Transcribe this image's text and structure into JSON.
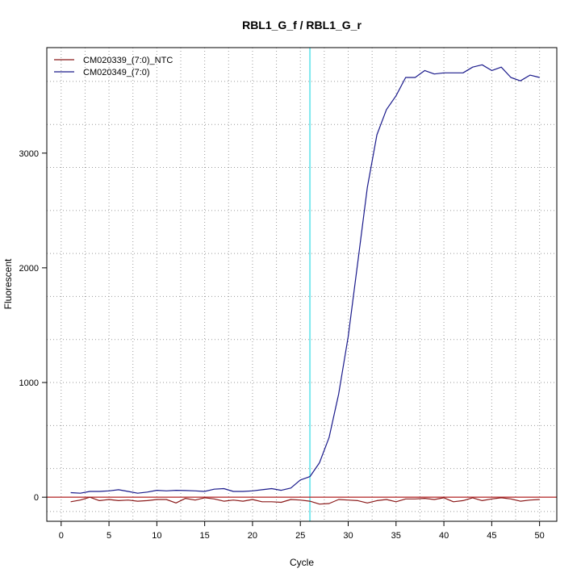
{
  "chart_data": {
    "type": "line",
    "title": "RBL1_G_f / RBL1_G_r",
    "xlabel": "Cycle",
    "ylabel": "Fluorescent",
    "xlim": [
      -1.5,
      51.8
    ],
    "ylim": [
      -210,
      3920
    ],
    "x_ticks": [
      0,
      5,
      10,
      15,
      20,
      25,
      30,
      35,
      40,
      45,
      50
    ],
    "x_tick_labels": [
      "0",
      "5",
      "10",
      "15",
      "20",
      "25",
      "30",
      "35",
      "40",
      "45",
      "50"
    ],
    "y_ticks": [
      0,
      1000,
      2000,
      3000
    ],
    "y_tick_labels": [
      "0",
      "1000",
      "2000",
      "3000"
    ],
    "grid": true,
    "legend_position": "top-left",
    "threshold_x": 26,
    "threshold_color": "#7fe8ee",
    "baseline_y": 0,
    "baseline_color": "#b02020",
    "series": [
      {
        "name": "CM020339_(7:0)_NTC",
        "color": "#8b1a1a",
        "x": [
          1,
          2,
          3,
          4,
          5,
          6,
          7,
          8,
          9,
          10,
          11,
          12,
          13,
          14,
          15,
          16,
          17,
          18,
          19,
          20,
          21,
          22,
          23,
          24,
          25,
          26,
          27,
          28,
          29,
          30,
          31,
          32,
          33,
          34,
          35,
          36,
          37,
          38,
          39,
          40,
          41,
          42,
          43,
          44,
          45,
          46,
          47,
          48,
          49,
          50
        ],
        "values": [
          -40,
          -25,
          0,
          -30,
          -20,
          -30,
          -25,
          -35,
          -30,
          -20,
          -20,
          -50,
          -10,
          -25,
          -5,
          -15,
          -35,
          -25,
          -35,
          -20,
          -40,
          -40,
          -45,
          -20,
          -25,
          -35,
          -60,
          -55,
          -20,
          -25,
          -30,
          -50,
          -30,
          -20,
          -40,
          -15,
          -15,
          -10,
          -20,
          -5,
          -40,
          -30,
          -5,
          -30,
          -15,
          -5,
          -15,
          -35,
          -25,
          -20
        ]
      },
      {
        "name": "CM020349_(7:0)",
        "color": "#1a1a8b",
        "x": [
          1,
          2,
          3,
          4,
          5,
          6,
          7,
          8,
          9,
          10,
          11,
          12,
          13,
          14,
          15,
          16,
          17,
          18,
          19,
          20,
          21,
          22,
          23,
          24,
          25,
          26,
          27,
          28,
          29,
          30,
          31,
          32,
          33,
          34,
          35,
          36,
          37,
          38,
          39,
          40,
          41,
          42,
          43,
          44,
          45,
          46,
          47,
          48,
          49,
          50
        ],
        "values": [
          40,
          35,
          50,
          50,
          55,
          65,
          50,
          35,
          45,
          60,
          55,
          60,
          58,
          55,
          50,
          70,
          75,
          50,
          50,
          55,
          65,
          75,
          60,
          80,
          150,
          180,
          300,
          520,
          900,
          1400,
          2050,
          2700,
          3160,
          3380,
          3500,
          3660,
          3660,
          3720,
          3690,
          3700,
          3700,
          3700,
          3750,
          3770,
          3720,
          3750,
          3660,
          3630,
          3680,
          3660
        ]
      }
    ]
  }
}
